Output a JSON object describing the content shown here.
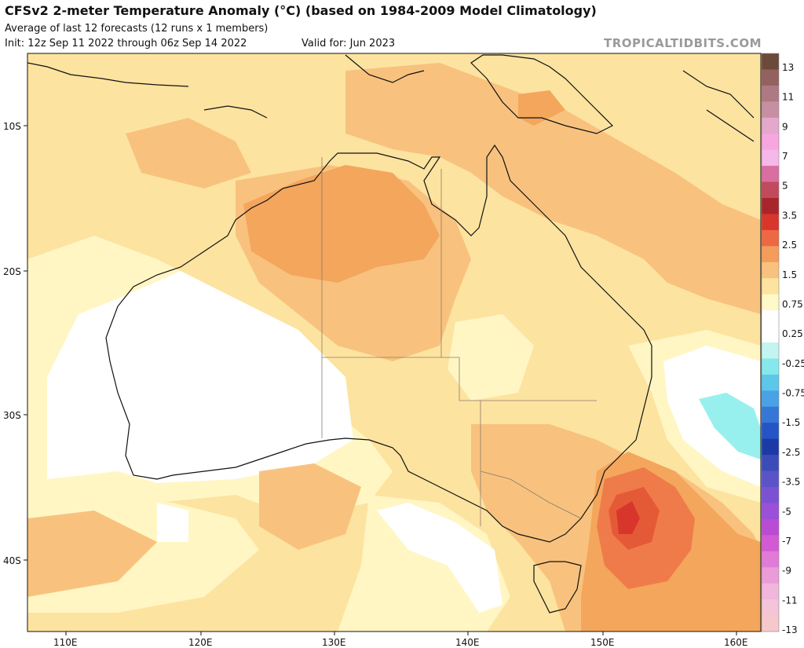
{
  "header": {
    "title": "CFSv2 2-meter Temperature Anomaly (°C) (based on 1984-2009 Model Climatology)",
    "subtitle": "Average of last 12 forecasts (12 runs x 1 members)",
    "init": "Init: 12z Sep 11 2022 through 06z Sep 14 2022",
    "valid": "Valid for: Jun 2023",
    "brand": "TROPICALTIDBITS.COM"
  },
  "map": {
    "region": "Australia",
    "lat_labels": [
      "10S",
      "20S",
      "30S",
      "40S"
    ],
    "lon_labels": [
      "110E",
      "120E",
      "130E",
      "140E",
      "150E",
      "160E"
    ]
  },
  "colorbar": {
    "labels": [
      "13",
      "11",
      "9",
      "7",
      "5",
      "3.5",
      "2.5",
      "1.5",
      "0.75",
      "0.25",
      "-0.25",
      "-0.75",
      "-1.5",
      "-2.5",
      "-3.5",
      "-5",
      "-7",
      "-9",
      "-11",
      "-13"
    ],
    "colors": [
      "#6b4a3a",
      "#946060",
      "#ad7a84",
      "#c78fa2",
      "#e3a8cb",
      "#f7a6e0",
      "#f5b8e8",
      "#d96ea0",
      "#c14a5c",
      "#a8252c",
      "#d8362c",
      "#ef6844",
      "#f39c5c",
      "#f8c27e",
      "#fde3a0",
      "#fff8c8",
      "#ffffff",
      "#ffffff",
      "#c4f4f2",
      "#86e8ec",
      "#5dc7ea",
      "#4aa2e6",
      "#3576d6",
      "#2554c4",
      "#1c3aa6",
      "#3b4cb8",
      "#5a54c8",
      "#7b52d4",
      "#9a50d8",
      "#b94cd4",
      "#d25bd4",
      "#e07bd8",
      "#ea9cd8",
      "#f0b6dc",
      "#f4c4d8",
      "#f6c8cc"
    ]
  }
}
